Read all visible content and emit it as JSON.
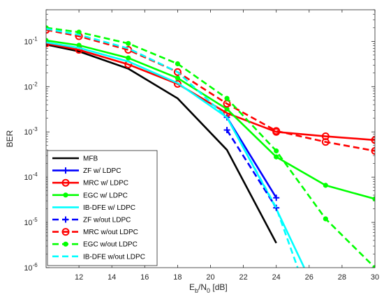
{
  "chart_data": {
    "type": "line",
    "xlabel": "E_b/N_0 [dB]",
    "xlabel_parts": {
      "e": "E",
      "b": "b",
      "slash": "/N",
      "zero": "0",
      "unit": " [dB]"
    },
    "ylabel": "BER",
    "xlim": [
      10,
      30
    ],
    "ylim": [
      1e-06,
      0.5
    ],
    "y_scale": "log",
    "grid": false,
    "legend_position": "bottom-left",
    "x_ticks": [
      "12",
      "14",
      "16",
      "18",
      "20",
      "22",
      "24",
      "26",
      "28",
      "30"
    ],
    "x_tick_values": [
      12,
      14,
      16,
      18,
      20,
      22,
      24,
      26,
      28,
      30
    ],
    "y_ticks": [
      {
        "value": 1e-06,
        "base": "10",
        "exp": "-6"
      },
      {
        "value": 1e-05,
        "base": "10",
        "exp": "-5"
      },
      {
        "value": 0.0001,
        "base": "10",
        "exp": "-4"
      },
      {
        "value": 0.001,
        "base": "10",
        "exp": "-3"
      },
      {
        "value": 0.01,
        "base": "10",
        "exp": "-2"
      },
      {
        "value": 0.1,
        "base": "10",
        "exp": "-1"
      }
    ],
    "series": [
      {
        "name": "MFB",
        "color": "#000000",
        "dash": "solid",
        "marker": "none",
        "x": [
          10,
          12,
          15,
          18,
          21,
          24
        ],
        "y": [
          0.085,
          0.06,
          0.025,
          0.0055,
          0.0004,
          3.5e-06
        ]
      },
      {
        "name": "ZF w/ LDPC",
        "color": "#0000ff",
        "dash": "solid",
        "marker": "plus",
        "x": [
          21,
          24
        ],
        "y": [
          0.0021,
          3.5e-05
        ]
      },
      {
        "name": "MRC w/ LDPC",
        "color": "#ff0000",
        "dash": "solid",
        "marker": "circle",
        "x": [
          10,
          12,
          15,
          18,
          21,
          24,
          27,
          30
        ],
        "y": [
          0.09,
          0.065,
          0.031,
          0.0115,
          0.0026,
          0.001,
          0.0008,
          0.00066
        ]
      },
      {
        "name": "EGC w/ LDPC",
        "color": "#00ff00",
        "dash": "solid",
        "marker": "dot",
        "x": [
          10,
          12,
          15,
          18,
          21,
          24,
          27,
          30
        ],
        "y": [
          0.105,
          0.082,
          0.043,
          0.0155,
          0.0032,
          0.00028,
          6.6e-05,
          3.3e-05
        ]
      },
      {
        "name": "IB-DFE w/ LDPC",
        "color": "#00ffff",
        "dash": "solid",
        "marker": "none",
        "x": [
          10,
          12,
          15,
          18,
          21,
          24,
          25.7
        ],
        "y": [
          0.095,
          0.072,
          0.036,
          0.012,
          0.0021,
          2e-05,
          1e-06
        ]
      },
      {
        "name": "ZF w/out LDPC",
        "color": "#0000ff",
        "dash": "dashed",
        "marker": "plus",
        "x": [
          21,
          24
        ],
        "y": [
          0.0011,
          2.1e-05
        ]
      },
      {
        "name": "MRC w/out LDPC",
        "color": "#ff0000",
        "dash": "dashed",
        "marker": "circle",
        "x": [
          10,
          12,
          15,
          18,
          21,
          24,
          27,
          30
        ],
        "y": [
          0.18,
          0.13,
          0.065,
          0.021,
          0.0042,
          0.00105,
          0.0006,
          0.00038
        ]
      },
      {
        "name": "EGC w/out LDPC",
        "color": "#00ff00",
        "dash": "dashed",
        "marker": "dot",
        "x": [
          10,
          12,
          15,
          18,
          21,
          24,
          27,
          30
        ],
        "y": [
          0.2,
          0.16,
          0.09,
          0.032,
          0.0055,
          0.00038,
          1.2e-05,
          1e-06
        ]
      },
      {
        "name": "IB-DFE w/out LDPC",
        "color": "#00ffff",
        "dash": "dashed",
        "marker": "none",
        "x": [
          10,
          12,
          15,
          18,
          21,
          24,
          25.3
        ],
        "y": [
          0.19,
          0.14,
          0.07,
          0.021,
          0.0021,
          2.1e-05,
          1e-06
        ]
      }
    ]
  }
}
